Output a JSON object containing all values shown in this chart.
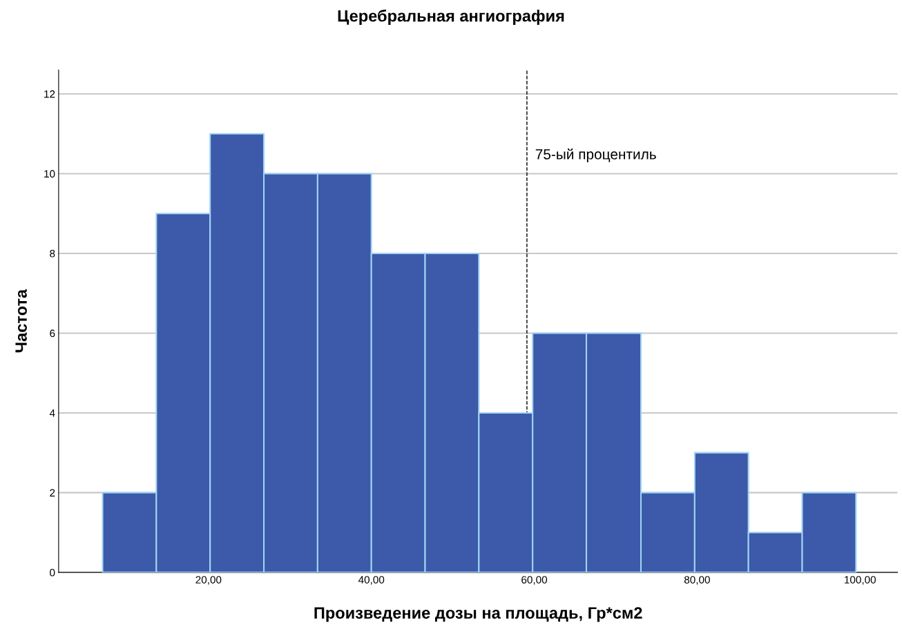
{
  "chart_data": {
    "type": "histogram",
    "title": "Церебральная ангиография",
    "xlabel": "Произведение дозы на площадь, Гр*см2",
    "ylabel": "Частота",
    "bins": [
      7.0,
      13.6,
      20.2,
      26.8,
      33.4,
      40.0,
      46.6,
      53.2,
      59.8,
      66.4,
      73.1,
      79.7,
      86.3,
      92.9,
      99.5
    ],
    "values": [
      2,
      9,
      11,
      10,
      10,
      8,
      8,
      4,
      6,
      6,
      2,
      3,
      1,
      2
    ],
    "color": "#3d59a9",
    "xlim": [
      1.6,
      104.6
    ],
    "xticks": [
      {
        "value": 20,
        "label": "20,00"
      },
      {
        "value": 40,
        "label": "40,00"
      },
      {
        "value": 60,
        "label": "60,00"
      },
      {
        "value": 80,
        "label": "80,00"
      },
      {
        "value": 100,
        "label": "100,00"
      }
    ],
    "ylim": [
      0,
      12.6
    ],
    "yticks": [
      0,
      2,
      4,
      6,
      8,
      10,
      12
    ],
    "grid": "y",
    "ref_lines": [
      {
        "axis": "x",
        "value": 59.1,
        "label": "75-ый процентиль",
        "color": "#000000",
        "line_style": "dashed"
      }
    ]
  }
}
